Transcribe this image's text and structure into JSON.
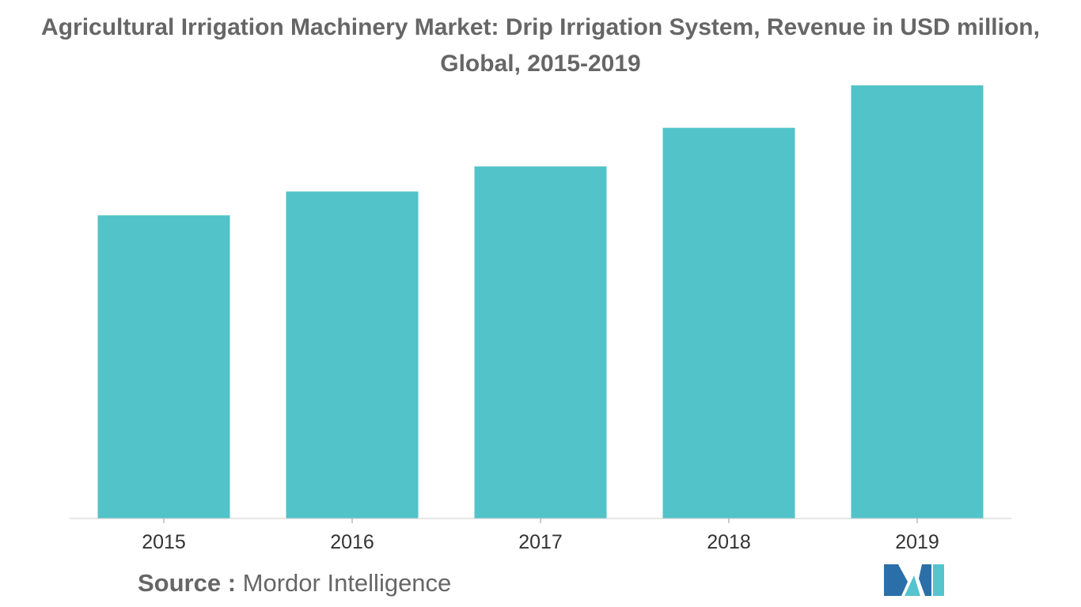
{
  "chart_data": {
    "type": "bar",
    "title": "Agricultural Irrigation Machinery Market: Drip Irrigation System, Revenue in USD million,\nGlobal, 2015-2019",
    "categories": [
      "2015",
      "2016",
      "2017",
      "2018",
      "2019"
    ],
    "values": [
      70,
      75.5,
      81.3,
      90.2,
      100
    ],
    "xlabel": "",
    "ylabel": "",
    "ylim": [
      0,
      100
    ],
    "grid": false,
    "legend": "none",
    "bar_color": "#52C3C9"
  },
  "source": {
    "label": "Source :",
    "text": "Mordor Intelligence"
  },
  "colors": {
    "bar": "#52C3C9",
    "title": "#666666",
    "logo_dark": "#2A6FA8",
    "logo_light": "#55C4CC"
  }
}
